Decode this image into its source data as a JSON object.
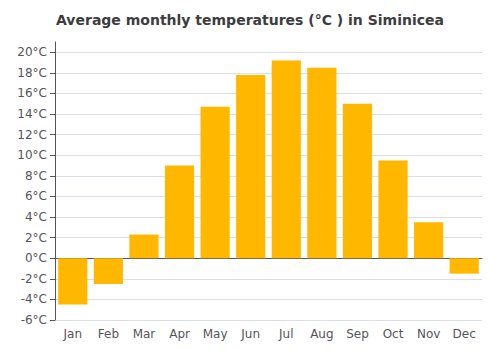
{
  "chart_data": {
    "type": "bar",
    "title": "Average monthly temperatures (°C ) in Siminicea",
    "categories": [
      "Jan",
      "Feb",
      "Mar",
      "Apr",
      "May",
      "Jun",
      "Jul",
      "Aug",
      "Sep",
      "Oct",
      "Nov",
      "Dec"
    ],
    "values": [
      -4.5,
      -2.5,
      2.3,
      9.0,
      14.7,
      17.8,
      19.2,
      18.5,
      15.0,
      9.5,
      3.5,
      -1.5
    ],
    "color": "#FFB700",
    "ylim": [
      -6,
      21
    ],
    "yticks": [
      {
        "value": -6,
        "label": "-6°C"
      },
      {
        "value": -4,
        "label": "-4°C"
      },
      {
        "value": -2,
        "label": "-2°C"
      },
      {
        "value": 0,
        "label": "0°C"
      },
      {
        "value": 2,
        "label": "2°C"
      },
      {
        "value": 4,
        "label": "4°C"
      },
      {
        "value": 6,
        "label": "6°C"
      },
      {
        "value": 8,
        "label": "8°C"
      },
      {
        "value": 10,
        "label": "10°C"
      },
      {
        "value": 12,
        "label": "12°C"
      },
      {
        "value": 14,
        "label": "14°C"
      },
      {
        "value": 16,
        "label": "16°C"
      },
      {
        "value": 18,
        "label": "18°C"
      },
      {
        "value": 20,
        "label": "20°C"
      }
    ],
    "grid": true
  }
}
